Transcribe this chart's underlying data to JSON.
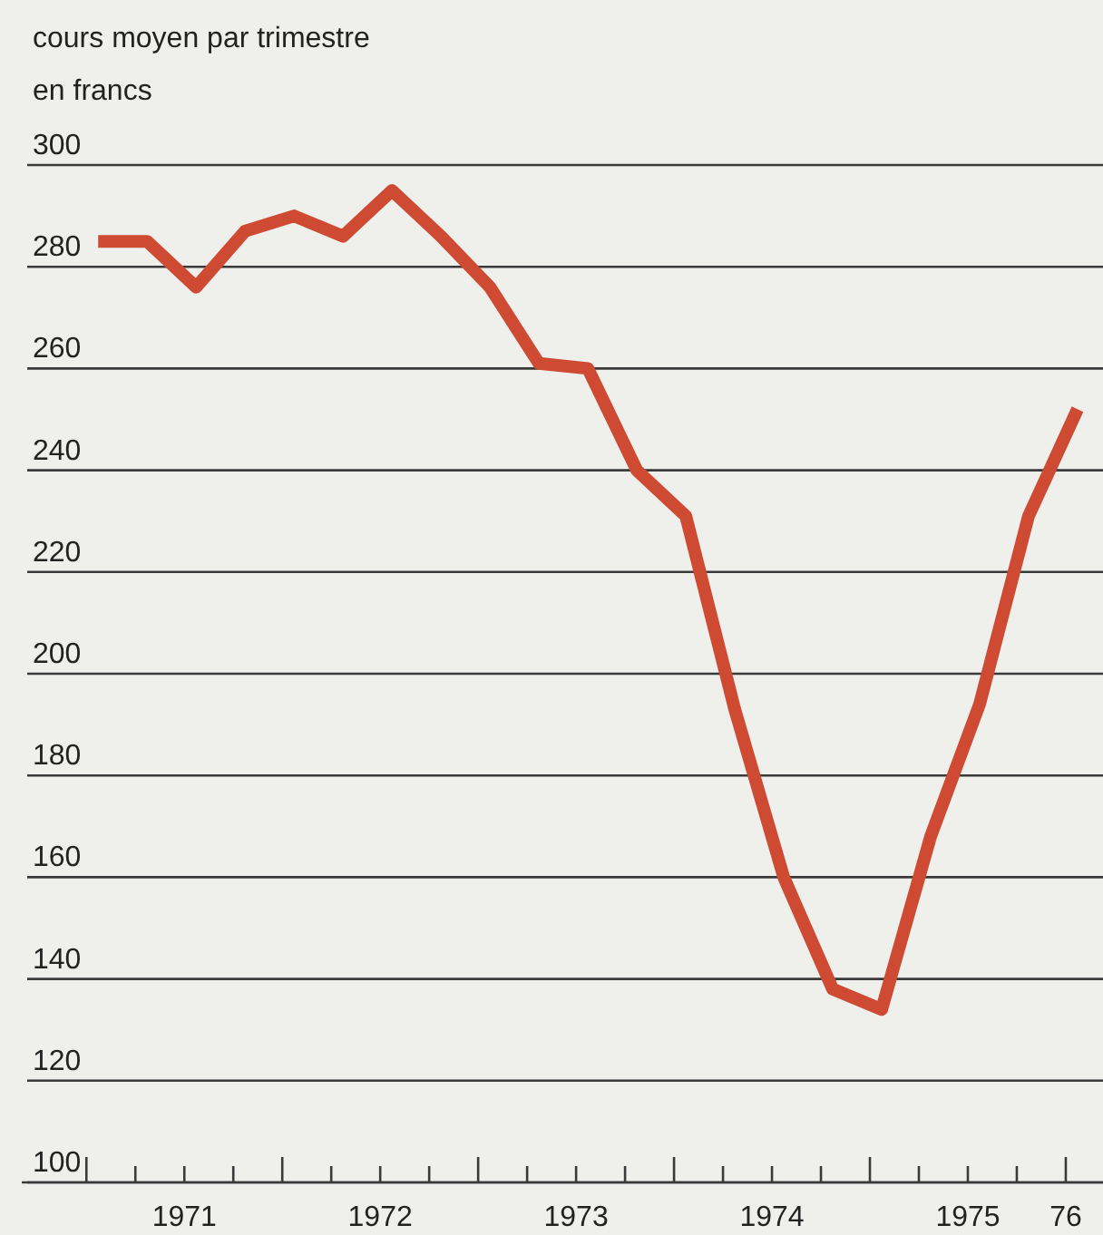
{
  "chart_data": {
    "type": "line",
    "subtitle": "cours moyen par trimestre",
    "ylabel": "en francs",
    "x": [
      1971.06,
      1971.31,
      1971.56,
      1971.81,
      1972.06,
      1972.31,
      1972.56,
      1972.81,
      1973.06,
      1973.31,
      1973.56,
      1973.81,
      1974.06,
      1974.31,
      1974.56,
      1974.81,
      1975.06,
      1975.31,
      1975.56,
      1975.81,
      1976.06
    ],
    "series": [
      {
        "color": "#cf4a33",
        "values": [
          285,
          285,
          276,
          287,
          290,
          286,
          295,
          286,
          276,
          261,
          260,
          240,
          231,
          193,
          160,
          138,
          134,
          168,
          194,
          231,
          252
        ]
      }
    ],
    "xlim": [
      1970.67,
      1976.19
    ],
    "xticks": [
      {
        "value": 1971,
        "label": null
      },
      {
        "value": 1971.25,
        "label": null
      },
      {
        "value": 1971.5,
        "label": "1971"
      },
      {
        "value": 1971.75,
        "label": null
      },
      {
        "value": 1972,
        "label": null
      },
      {
        "value": 1972.25,
        "label": null
      },
      {
        "value": 1972.5,
        "label": "1972"
      },
      {
        "value": 1972.75,
        "label": null
      },
      {
        "value": 1973,
        "label": null
      },
      {
        "value": 1973.25,
        "label": null
      },
      {
        "value": 1973.5,
        "label": "1973"
      },
      {
        "value": 1973.75,
        "label": null
      },
      {
        "value": 1974,
        "label": null
      },
      {
        "value": 1974.25,
        "label": null
      },
      {
        "value": 1974.5,
        "label": "1974"
      },
      {
        "value": 1974.75,
        "label": null
      },
      {
        "value": 1975,
        "label": null
      },
      {
        "value": 1975.25,
        "label": null
      },
      {
        "value": 1975.5,
        "label": "1975"
      },
      {
        "value": 1975.75,
        "label": null
      },
      {
        "value": 1976,
        "label": "76"
      }
    ],
    "ylim": [
      100,
      300
    ],
    "yticks": [
      100,
      120,
      140,
      160,
      180,
      200,
      220,
      240,
      260,
      280,
      300
    ],
    "grid": "y",
    "line_style": "solid"
  }
}
